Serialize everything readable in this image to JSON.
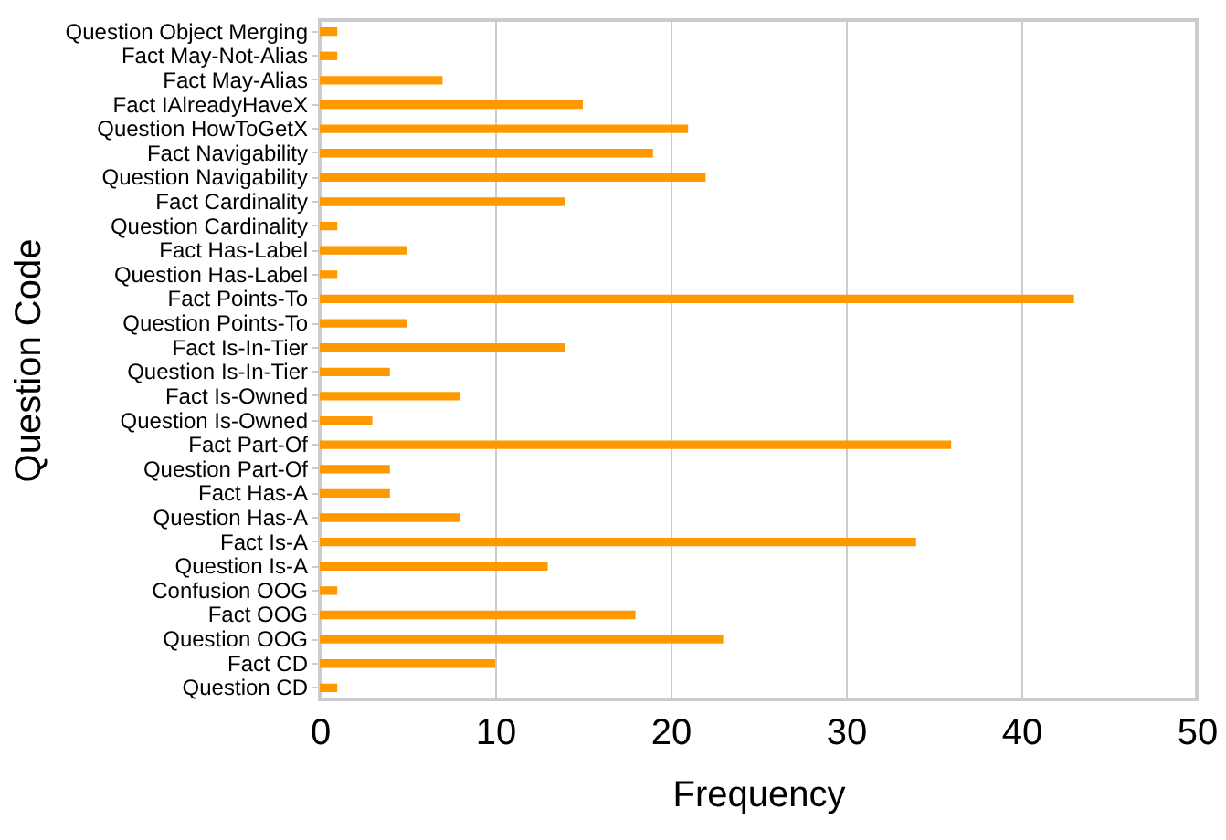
{
  "chart_data": {
    "type": "bar",
    "orientation": "horizontal",
    "xlabel": "Frequency",
    "ylabel": "Question Code",
    "categories": [
      "Question Object Merging",
      "Fact May-Not-Alias",
      "Fact May-Alias",
      "Fact IAlreadyHaveX",
      "Question HowToGetX",
      "Fact Navigability",
      "Question Navigability",
      "Fact Cardinality",
      "Question Cardinality",
      "Fact Has-Label",
      "Question Has-Label",
      "Fact Points-To",
      "Question Points-To",
      "Fact Is-In-Tier",
      "Question Is-In-Tier",
      "Fact Is-Owned",
      "Question Is-Owned",
      "Fact Part-Of",
      "Question Part-Of",
      "Fact Has-A",
      "Question Has-A",
      "Fact Is-A",
      "Question Is-A",
      "Confusion OOG",
      "Fact OOG",
      "Question OOG",
      "Fact CD",
      "Question CD"
    ],
    "values": [
      1,
      1,
      7,
      15,
      21,
      19,
      22,
      14,
      1,
      5,
      1,
      43,
      5,
      14,
      4,
      8,
      3,
      36,
      4,
      4,
      8,
      34,
      13,
      1,
      18,
      23,
      10,
      1
    ],
    "color": "#ff9900",
    "xlim": [
      0,
      50
    ],
    "xticks": [
      0,
      10,
      20,
      30,
      40,
      50
    ],
    "grid": "x"
  }
}
